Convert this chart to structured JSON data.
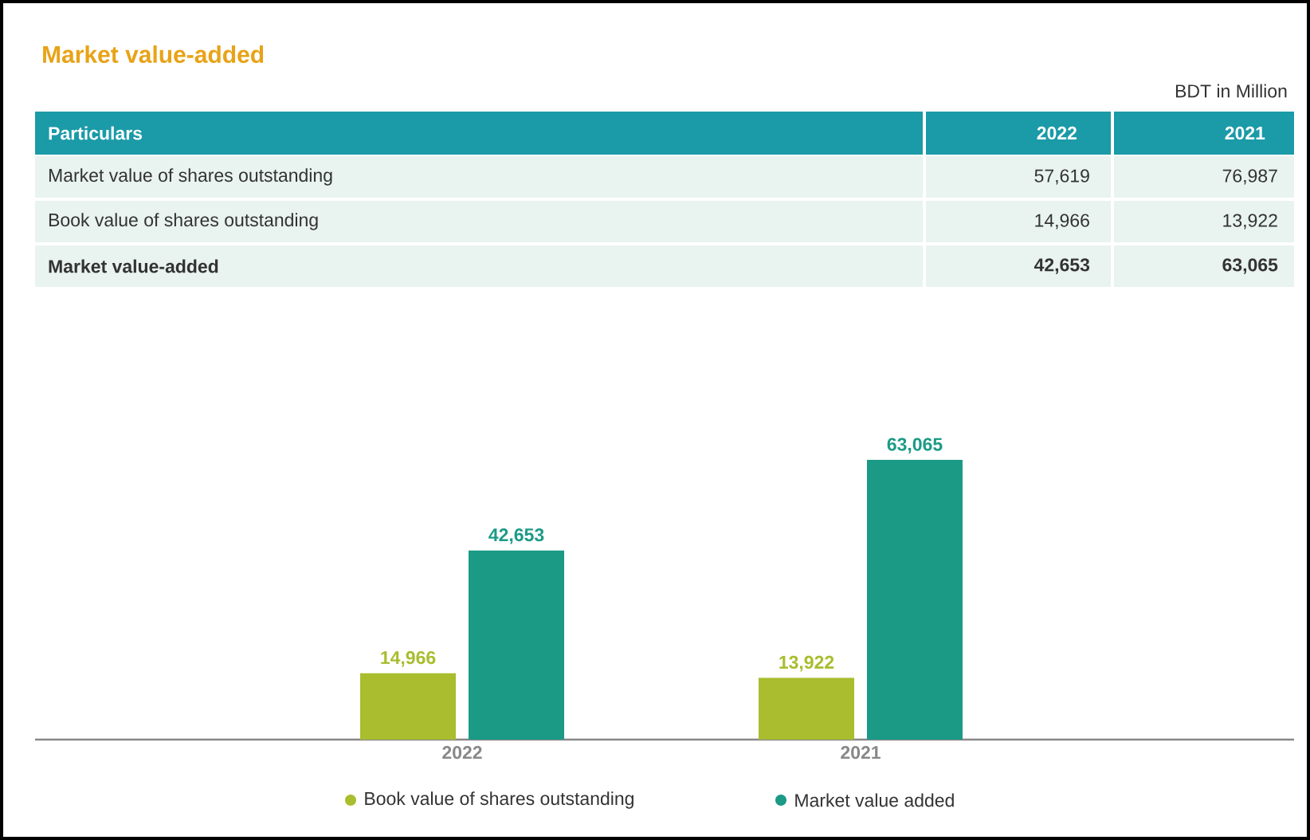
{
  "chart_data": [
    {
      "type": "other",
      "title": "Market value-added",
      "subtitle": "BDT in Million",
      "legend_title": "Particulars",
      "categories": [
        "2022",
        "2021"
      ],
      "series": [
        {
          "name": "Market value of shares outstanding",
          "values": [
            57619,
            76987
          ],
          "value_labels": [
            "57,619",
            "76,987"
          ]
        },
        {
          "name": "Book value of shares outstanding",
          "values": [
            14966,
            13922
          ],
          "value_labels": [
            "14,966",
            "13,922"
          ]
        },
        {
          "name": "Market value-added",
          "values": [
            42653,
            63065
          ],
          "value_labels": [
            "42,653",
            "63,065"
          ]
        }
      ]
    },
    {
      "type": "bar",
      "categories": [
        "2022",
        "2021"
      ],
      "legend": "bottom",
      "tick_labels": "x",
      "series": [
        {
          "name": "Book value of shares outstanding",
          "color": "#a9bd2e",
          "values": [
            14966,
            13922
          ],
          "value_labels": [
            "14,966",
            "13,922"
          ]
        },
        {
          "name": "Market value added",
          "color": "#1b9a86",
          "values": [
            42653,
            63065
          ],
          "value_labels": [
            "42,653",
            "63,065"
          ]
        }
      ]
    }
  ]
}
